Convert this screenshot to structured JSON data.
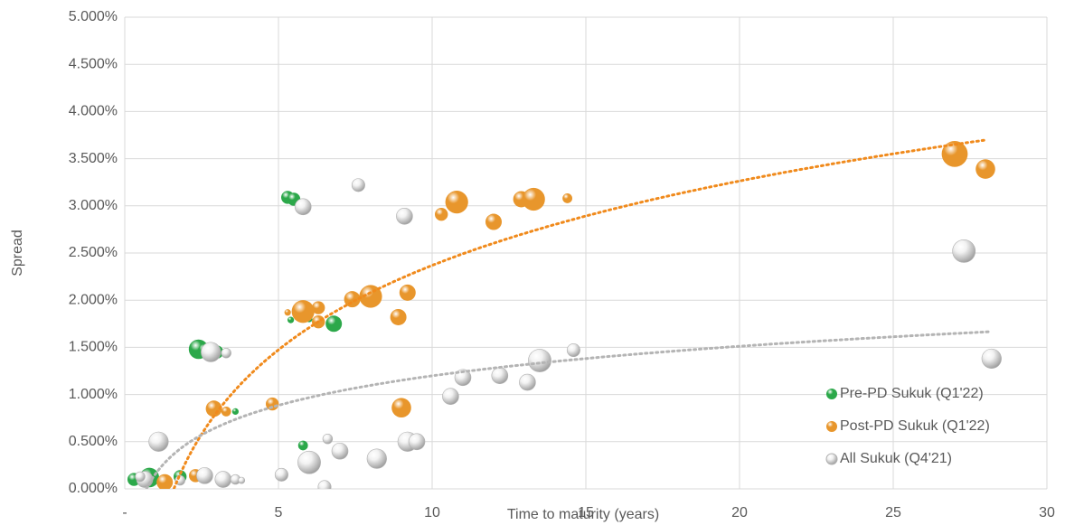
{
  "chart_data": {
    "type": "bubble",
    "x_label": "Time to maturity (years)",
    "y_label": "Spread",
    "xlim": [
      0,
      30
    ],
    "xticks": [
      {
        "value": 0,
        "label": "-"
      },
      5,
      10,
      15,
      20,
      25,
      30
    ],
    "ylim": [
      0,
      5
    ],
    "yticks": [
      {
        "value": 0,
        "label": "0.000%"
      },
      {
        "value": 0.5,
        "label": "0.500%"
      },
      {
        "value": 1,
        "label": "1.000%"
      },
      {
        "value": 1.5,
        "label": "1.500%"
      },
      {
        "value": 2,
        "label": "2.000%"
      },
      {
        "value": 2.5,
        "label": "2.500%"
      },
      {
        "value": 3,
        "label": "3.000%"
      },
      {
        "value": 3.5,
        "label": "3.500%"
      },
      {
        "value": 4,
        "label": "4.000%"
      },
      {
        "value": 4.5,
        "label": "4.500%"
      },
      {
        "value": 5,
        "label": "5.000%"
      }
    ],
    "grid": true,
    "legend": "lower right",
    "series": [
      {
        "name": "Pre-PD Sukuk (Q1'22)",
        "color": "#2ca84a",
        "x": [
          0.3,
          0.8,
          1.8,
          2.4,
          2.6,
          3.0,
          3.6,
          5.3,
          5.5,
          5.4,
          5.8,
          6.8,
          6.0
        ],
        "values": [
          0.1,
          0.12,
          0.13,
          1.48,
          1.47,
          1.45,
          0.82,
          3.09,
          3.07,
          1.79,
          0.46,
          1.75,
          1.8
        ],
        "sizes": [
          2,
          3,
          2,
          3,
          2,
          2,
          1,
          2,
          2,
          1,
          1.5,
          2.5,
          1
        ]
      },
      {
        "name": "Post-PD Sukuk (Q1'22)",
        "color": "#e8962c",
        "trendline": "logarithmic",
        "trendline_color": "#f08a1c",
        "x": [
          1.3,
          2.3,
          2.9,
          3.3,
          4.8,
          5.8,
          5.3,
          6.3,
          6.3,
          7.4,
          8.0,
          9.2,
          8.9,
          9.0,
          10.3,
          10.8,
          12.0,
          12.9,
          13.3,
          14.4,
          27.0,
          28.0
        ],
        "values": [
          0.07,
          0.14,
          0.85,
          0.82,
          0.9,
          1.88,
          1.87,
          1.92,
          1.77,
          2.01,
          2.04,
          2.08,
          1.82,
          0.86,
          2.91,
          3.04,
          2.83,
          3.07,
          3.07,
          3.08,
          3.55,
          3.39
        ],
        "sizes": [
          2.5,
          2,
          2.5,
          1.5,
          2,
          3.5,
          1,
          2,
          2,
          2.5,
          3.5,
          2.5,
          2.5,
          3,
          2,
          3.5,
          2.5,
          2.5,
          3.5,
          1.5,
          4,
          3
        ]
      },
      {
        "name": "All Sukuk (Q4'21)",
        "color": "#f2f2f2",
        "trendline": "logarithmic",
        "trendline_color": "#b4b4b4",
        "x": [
          0.65,
          0.5,
          1.1,
          1.8,
          2.6,
          2.8,
          3.3,
          3.2,
          3.6,
          3.8,
          5.1,
          5.8,
          6.0,
          6.6,
          7.0,
          6.5,
          7.6,
          8.2,
          9.1,
          9.2,
          9.5,
          10.6,
          11.0,
          12.2,
          13.1,
          13.5,
          14.6,
          27.3,
          28.2
        ],
        "values": [
          0.1,
          0.13,
          0.5,
          0.09,
          0.14,
          1.45,
          1.44,
          0.1,
          0.1,
          0.09,
          0.15,
          2.99,
          0.28,
          0.53,
          0.4,
          0.02,
          3.22,
          0.32,
          2.89,
          0.5,
          0.5,
          0.98,
          1.18,
          1.2,
          1.13,
          1.36,
          1.47,
          2.52,
          1.38
        ],
        "sizes": [
          2.5,
          1.5,
          3,
          1.5,
          2.5,
          3,
          1.5,
          2.5,
          1.5,
          1,
          2,
          2.5,
          3.5,
          1.5,
          2.5,
          2,
          2,
          3,
          2.5,
          3,
          2.5,
          2.5,
          2.5,
          2.5,
          2.5,
          3.5,
          2,
          3.5,
          3
        ]
      }
    ]
  }
}
